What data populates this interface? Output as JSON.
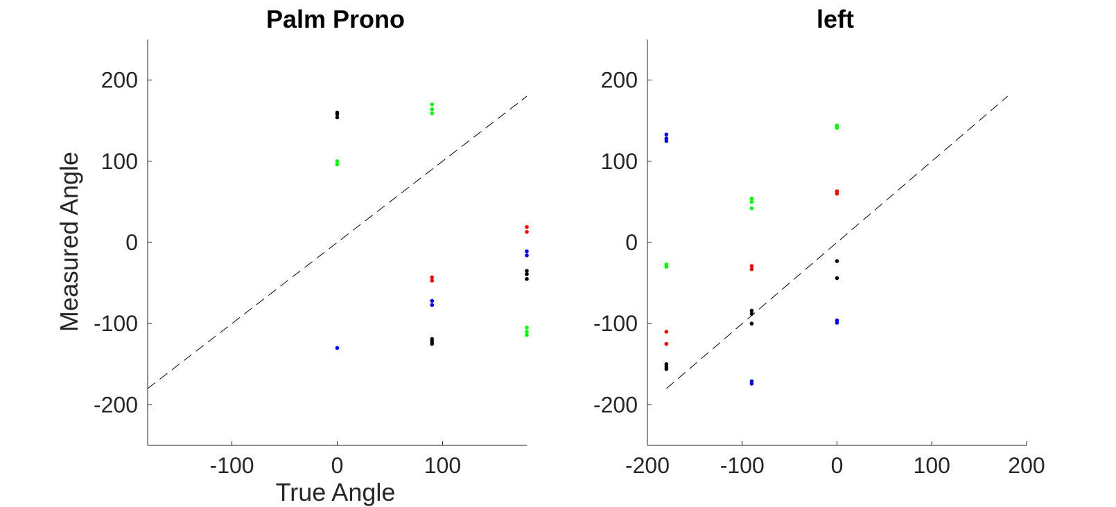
{
  "chart_data": [
    {
      "type": "scatter",
      "title": "Palm Prono",
      "xlabel": "True Angle",
      "ylabel": "Measured Angle",
      "xlim": [
        -180,
        180
      ],
      "ylim": [
        -250,
        250
      ],
      "xticks": [
        -100,
        0,
        100
      ],
      "yticks": [
        -200,
        -100,
        0,
        100,
        200
      ],
      "reference_line": {
        "style": "dashed",
        "color": "#000000",
        "from": [
          -180,
          -180
        ],
        "to": [
          180,
          180
        ]
      },
      "grid": false,
      "series": [
        {
          "color": "#000000",
          "points": [
            [
              0,
              160
            ],
            [
              0,
              158
            ],
            [
              0,
              154
            ],
            [
              90,
              -119
            ],
            [
              90,
              -122
            ],
            [
              90,
              -125
            ],
            [
              180,
              -35
            ],
            [
              180,
              -39
            ],
            [
              180,
              -45
            ]
          ]
        },
        {
          "color": "#00ff00",
          "points": [
            [
              0,
              100
            ],
            [
              0,
              96
            ],
            [
              90,
              170
            ],
            [
              90,
              164
            ],
            [
              90,
              159
            ],
            [
              180,
              -105
            ],
            [
              180,
              -110
            ],
            [
              180,
              -114
            ]
          ]
        },
        {
          "color": "#ff0000",
          "points": [
            [
              90,
              -43
            ],
            [
              90,
              -47
            ],
            [
              180,
              19
            ],
            [
              180,
              13
            ]
          ]
        },
        {
          "color": "#0000ff",
          "points": [
            [
              0,
              -130
            ],
            [
              90,
              -72
            ],
            [
              90,
              -77
            ],
            [
              180,
              -11
            ],
            [
              180,
              -16
            ]
          ]
        }
      ]
    },
    {
      "type": "scatter",
      "title": "left",
      "xlabel": "",
      "ylabel": "",
      "xlim": [
        -200,
        200
      ],
      "ylim": [
        -250,
        250
      ],
      "xticks": [
        -200,
        -100,
        0,
        100,
        200
      ],
      "yticks": [
        -200,
        -100,
        0,
        100,
        200
      ],
      "reference_line": {
        "style": "dashed",
        "color": "#000000",
        "from": [
          -180,
          -180
        ],
        "to": [
          180,
          180
        ]
      },
      "grid": false,
      "series": [
        {
          "color": "#000000",
          "points": [
            [
              -180,
              -150
            ],
            [
              -180,
              -153
            ],
            [
              -180,
              -156
            ],
            [
              -90,
              -84
            ],
            [
              -90,
              -88
            ],
            [
              -90,
              -100
            ],
            [
              0,
              -23
            ],
            [
              0,
              -44
            ]
          ]
        },
        {
          "color": "#00ff00",
          "points": [
            [
              -180,
              -27
            ],
            [
              -180,
              -30
            ],
            [
              -90,
              54
            ],
            [
              -90,
              50
            ],
            [
              -90,
              42
            ],
            [
              0,
              144
            ],
            [
              0,
              141
            ]
          ]
        },
        {
          "color": "#ff0000",
          "points": [
            [
              -180,
              -110
            ],
            [
              -180,
              -125
            ],
            [
              -90,
              -29
            ],
            [
              -90,
              -33
            ],
            [
              0,
              63
            ],
            [
              0,
              60
            ]
          ]
        },
        {
          "color": "#0000ff",
          "points": [
            [
              -180,
              133
            ],
            [
              -180,
              128
            ],
            [
              -180,
              125
            ],
            [
              -90,
              -171
            ],
            [
              -90,
              -174
            ],
            [
              0,
              -96
            ],
            [
              0,
              -99
            ]
          ]
        }
      ]
    }
  ]
}
